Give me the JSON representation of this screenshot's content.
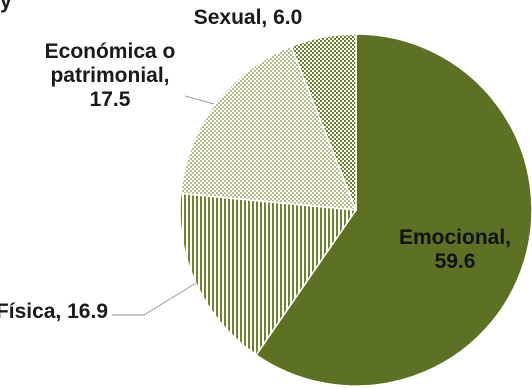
{
  "chart_data": {
    "type": "pie",
    "title": "",
    "categories": [
      "Emocional",
      "Física",
      "Económica o patrimonial",
      "Sexual"
    ],
    "values": [
      59.6,
      16.9,
      17.5,
      6.0
    ],
    "value_labels": [
      "59.6",
      "16.9",
      "17.5",
      "6.0"
    ],
    "label_lines": [
      [
        "Emocional,",
        "59.6"
      ],
      [
        "Física, 16.9"
      ],
      [
        "Económica o",
        "patrimonial,",
        "17.5"
      ],
      [
        "Sexual, 6.0"
      ]
    ],
    "start": "12 o'clock",
    "direction": "clockwise",
    "legend": "none",
    "colors": [
      "#5c7122",
      "#6f842d",
      "#7a8f35",
      "#6a7f2a"
    ],
    "fills": [
      "solid",
      "vertical-stripes",
      "dotted",
      "checker"
    ]
  },
  "top_edge_text": "y"
}
